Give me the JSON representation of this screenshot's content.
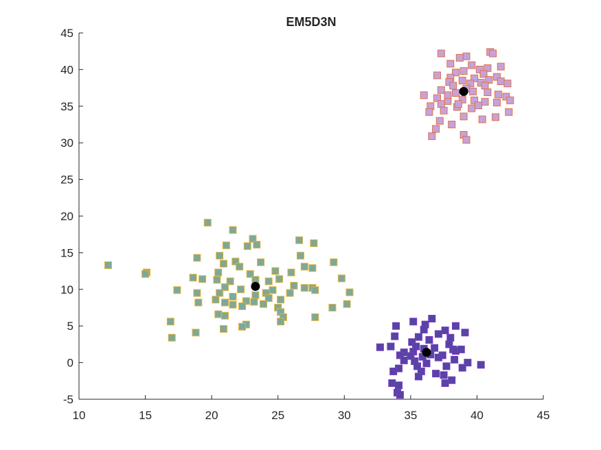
{
  "chart_data": {
    "type": "scatter",
    "title": "EM5D3N",
    "xlabel": "",
    "ylabel": "",
    "xlim": [
      10,
      45
    ],
    "ylim": [
      -5,
      45
    ],
    "x_ticks": [
      "10",
      "15",
      "20",
      "25",
      "30",
      "35",
      "40",
      "45"
    ],
    "y_ticks": [
      "-5",
      "0",
      "5",
      "10",
      "15",
      "20",
      "25",
      "30",
      "35",
      "40",
      "45"
    ],
    "grid": false,
    "legend": "none",
    "series": [
      {
        "marker": "square",
        "fill": "#c5a3d8",
        "edge": "#e0704a",
        "points": [
          [
            37.3,
            42.2
          ],
          [
            39.2,
            41.8
          ],
          [
            38.7,
            41.6
          ],
          [
            41.0,
            42.4
          ],
          [
            41.2,
            42.2
          ],
          [
            38.0,
            40.8
          ],
          [
            39.6,
            40.6
          ],
          [
            41.8,
            40.4
          ],
          [
            37.0,
            39.2
          ],
          [
            38.4,
            39.6
          ],
          [
            40.2,
            40.0
          ],
          [
            40.8,
            40.2
          ],
          [
            39.0,
            39.8
          ],
          [
            40.5,
            39.4
          ],
          [
            41.5,
            39.0
          ],
          [
            38.0,
            38.9
          ],
          [
            39.8,
            38.8
          ],
          [
            40.9,
            38.6
          ],
          [
            37.9,
            38.3
          ],
          [
            38.9,
            38.5
          ],
          [
            39.5,
            38.1
          ],
          [
            40.3,
            38.2
          ],
          [
            41.8,
            38.4
          ],
          [
            42.3,
            38.1
          ],
          [
            38.2,
            37.8
          ],
          [
            39.2,
            37.4
          ],
          [
            40.6,
            37.8
          ],
          [
            37.3,
            37.2
          ],
          [
            38.4,
            36.8
          ],
          [
            39.7,
            37.0
          ],
          [
            40.8,
            36.9
          ],
          [
            41.6,
            36.6
          ],
          [
            42.2,
            36.3
          ],
          [
            36.0,
            36.5
          ],
          [
            37.0,
            36.1
          ],
          [
            37.8,
            35.7
          ],
          [
            38.9,
            35.9
          ],
          [
            39.8,
            35.8
          ],
          [
            40.6,
            35.6
          ],
          [
            41.5,
            35.5
          ],
          [
            42.5,
            35.8
          ],
          [
            36.5,
            35.0
          ],
          [
            37.3,
            35.3
          ],
          [
            38.5,
            34.9
          ],
          [
            39.6,
            34.7
          ],
          [
            40.1,
            35.1
          ],
          [
            36.4,
            34.2
          ],
          [
            37.5,
            34.4
          ],
          [
            39.0,
            33.6
          ],
          [
            40.4,
            33.2
          ],
          [
            41.4,
            33.5
          ],
          [
            42.4,
            34.2
          ],
          [
            37.2,
            33.0
          ],
          [
            38.1,
            32.5
          ],
          [
            36.9,
            31.9
          ],
          [
            39.0,
            31.1
          ],
          [
            36.6,
            30.9
          ],
          [
            39.2,
            30.4
          ],
          [
            37.8,
            36.5
          ],
          [
            38.6,
            35.3
          ]
        ]
      },
      {
        "marker": "square",
        "fill": "#7da89a",
        "edge": "#e3b238",
        "points": [
          [
            19.7,
            19.1
          ],
          [
            21.6,
            18.1
          ],
          [
            23.1,
            16.9
          ],
          [
            26.6,
            16.7
          ],
          [
            27.7,
            16.3
          ],
          [
            21.1,
            16.0
          ],
          [
            22.7,
            15.9
          ],
          [
            23.4,
            16.1
          ],
          [
            26.7,
            14.6
          ],
          [
            20.6,
            14.6
          ],
          [
            18.9,
            14.3
          ],
          [
            21.8,
            13.8
          ],
          [
            23.7,
            13.7
          ],
          [
            20.9,
            13.5
          ],
          [
            22.1,
            13.1
          ],
          [
            27.0,
            13.1
          ],
          [
            27.6,
            12.9
          ],
          [
            29.2,
            13.7
          ],
          [
            12.2,
            13.3
          ],
          [
            15.1,
            12.3
          ],
          [
            15.0,
            12.1
          ],
          [
            20.5,
            12.3
          ],
          [
            22.9,
            12.1
          ],
          [
            24.8,
            12.5
          ],
          [
            26.0,
            12.3
          ],
          [
            18.6,
            11.6
          ],
          [
            19.3,
            11.4
          ],
          [
            20.4,
            11.3
          ],
          [
            21.4,
            11.1
          ],
          [
            23.3,
            11.3
          ],
          [
            24.3,
            11.1
          ],
          [
            25.1,
            11.4
          ],
          [
            29.8,
            11.5
          ],
          [
            21.0,
            10.3
          ],
          [
            22.2,
            10.0
          ],
          [
            24.6,
            9.9
          ],
          [
            26.2,
            10.5
          ],
          [
            27.0,
            10.2
          ],
          [
            27.6,
            10.2
          ],
          [
            20.6,
            9.5
          ],
          [
            21.6,
            9.0
          ],
          [
            23.3,
            9.2
          ],
          [
            24.1,
            9.5
          ],
          [
            25.9,
            9.5
          ],
          [
            27.8,
            9.9
          ],
          [
            30.4,
            9.6
          ],
          [
            17.4,
            9.9
          ],
          [
            18.9,
            9.5
          ],
          [
            20.3,
            8.6
          ],
          [
            21.0,
            8.2
          ],
          [
            22.6,
            8.4
          ],
          [
            23.2,
            8.3
          ],
          [
            24.3,
            8.8
          ],
          [
            25.2,
            8.6
          ],
          [
            19.0,
            8.2
          ],
          [
            21.6,
            7.9
          ],
          [
            22.3,
            7.7
          ],
          [
            23.9,
            8.0
          ],
          [
            25.0,
            7.5
          ],
          [
            30.2,
            8.0
          ],
          [
            29.1,
            7.5
          ],
          [
            20.5,
            6.6
          ],
          [
            21.0,
            6.4
          ],
          [
            25.2,
            6.9
          ],
          [
            25.4,
            6.2
          ],
          [
            27.8,
            6.2
          ],
          [
            16.9,
            5.6
          ],
          [
            25.2,
            5.6
          ],
          [
            22.6,
            5.2
          ],
          [
            22.3,
            4.9
          ],
          [
            20.9,
            4.6
          ],
          [
            18.8,
            4.1
          ],
          [
            17.0,
            3.4
          ]
        ]
      },
      {
        "marker": "square",
        "fill": "#5545a4",
        "edge": "#7a38c0",
        "points": [
          [
            36.6,
            6.0
          ],
          [
            35.2,
            5.6
          ],
          [
            33.9,
            5.0
          ],
          [
            36.1,
            5.2
          ],
          [
            38.4,
            5.0
          ],
          [
            36.0,
            4.5
          ],
          [
            37.6,
            4.4
          ],
          [
            37.1,
            3.9
          ],
          [
            38.0,
            3.4
          ],
          [
            39.1,
            4.1
          ],
          [
            33.8,
            3.6
          ],
          [
            35.6,
            3.5
          ],
          [
            36.4,
            3.1
          ],
          [
            35.1,
            2.8
          ],
          [
            37.9,
            2.5
          ],
          [
            33.5,
            2.2
          ],
          [
            32.7,
            2.1
          ],
          [
            35.4,
            2.2
          ],
          [
            36.8,
            2.0
          ],
          [
            38.2,
            1.8
          ],
          [
            34.5,
            1.4
          ],
          [
            35.2,
            1.5
          ],
          [
            36.5,
            1.1
          ],
          [
            37.4,
            1.0
          ],
          [
            38.4,
            1.6
          ],
          [
            38.8,
            1.8
          ],
          [
            34.2,
            1.0
          ],
          [
            35.9,
            0.8
          ],
          [
            37.1,
            0.7
          ],
          [
            38.3,
            0.4
          ],
          [
            39.3,
            0.0
          ],
          [
            40.3,
            -0.3
          ],
          [
            34.5,
            0.3
          ],
          [
            35.3,
            0.2
          ],
          [
            36.2,
            -0.1
          ],
          [
            37.7,
            -0.5
          ],
          [
            38.9,
            -0.7
          ],
          [
            34.1,
            -0.8
          ],
          [
            35.8,
            -1.2
          ],
          [
            36.9,
            -1.5
          ],
          [
            37.5,
            -1.7
          ],
          [
            33.7,
            -1.2
          ],
          [
            35.6,
            -1.9
          ],
          [
            38.1,
            -2.4
          ],
          [
            37.6,
            -2.8
          ],
          [
            33.6,
            -2.8
          ],
          [
            34.1,
            -3.1
          ],
          [
            34.0,
            -4.1
          ],
          [
            34.2,
            -4.4
          ],
          [
            35.0,
            0.9
          ],
          [
            36.0,
            1.9
          ],
          [
            35.5,
            -0.5
          ]
        ]
      }
    ],
    "centroids": {
      "marker": "circle",
      "color": "#000000",
      "points": [
        [
          39.0,
          37.0
        ],
        [
          23.3,
          10.4
        ],
        [
          36.2,
          1.4
        ]
      ]
    },
    "colors": {
      "axis": "#262626",
      "background": "#ffffff"
    }
  }
}
